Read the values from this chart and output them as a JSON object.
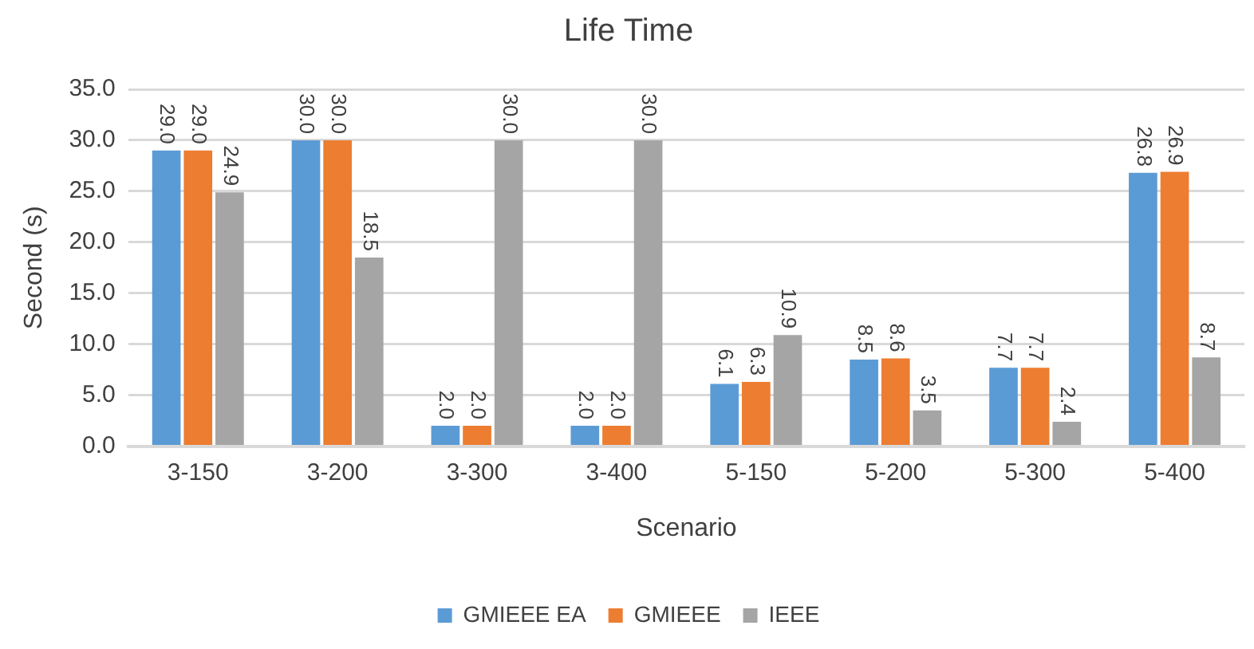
{
  "chart_data": {
    "type": "bar",
    "title": "Life Time",
    "xlabel": "Scenario",
    "ylabel": "Second (s)",
    "categories": [
      "3-150",
      "3-200",
      "3-300",
      "3-400",
      "5-150",
      "5-200",
      "5-300",
      "5-400"
    ],
    "series": [
      {
        "name": "GMIEEE EA",
        "color": "#5b9bd5",
        "values": [
          29.0,
          30.0,
          2.0,
          2.0,
          6.1,
          8.5,
          7.7,
          26.8
        ],
        "value_labels": [
          "29.0",
          "30.0",
          "2.0",
          "2.0",
          "6.1",
          "8.5",
          "7.7",
          "26.8"
        ]
      },
      {
        "name": "GMIEEE",
        "color": "#ed7d31",
        "values": [
          29.0,
          30.0,
          2.0,
          2.0,
          6.3,
          8.6,
          7.7,
          26.9
        ],
        "value_labels": [
          "29.0",
          "30.0",
          "2.0",
          "2.0",
          "6.3",
          "8.6",
          "7.7",
          "26.9"
        ]
      },
      {
        "name": "IEEE",
        "color": "#a5a5a5",
        "values": [
          24.9,
          18.5,
          30.0,
          30.0,
          10.9,
          3.5,
          2.4,
          8.7
        ],
        "value_labels": [
          "24.9",
          "18.5",
          "30.0",
          "30.0",
          "10.9",
          "3.5",
          "2.4",
          "8.7"
        ]
      }
    ],
    "ylim": [
      0,
      35
    ],
    "yticks": [
      {
        "value": 0,
        "label": "0.0"
      },
      {
        "value": 5,
        "label": "5.0"
      },
      {
        "value": 10,
        "label": "10.0"
      },
      {
        "value": 15,
        "label": "15.0"
      },
      {
        "value": 20,
        "label": "20.0"
      },
      {
        "value": 25,
        "label": "25.0"
      },
      {
        "value": 30,
        "label": "30.0"
      },
      {
        "value": 35,
        "label": "35.0"
      }
    ],
    "grid": "y",
    "legend": "bottom"
  }
}
